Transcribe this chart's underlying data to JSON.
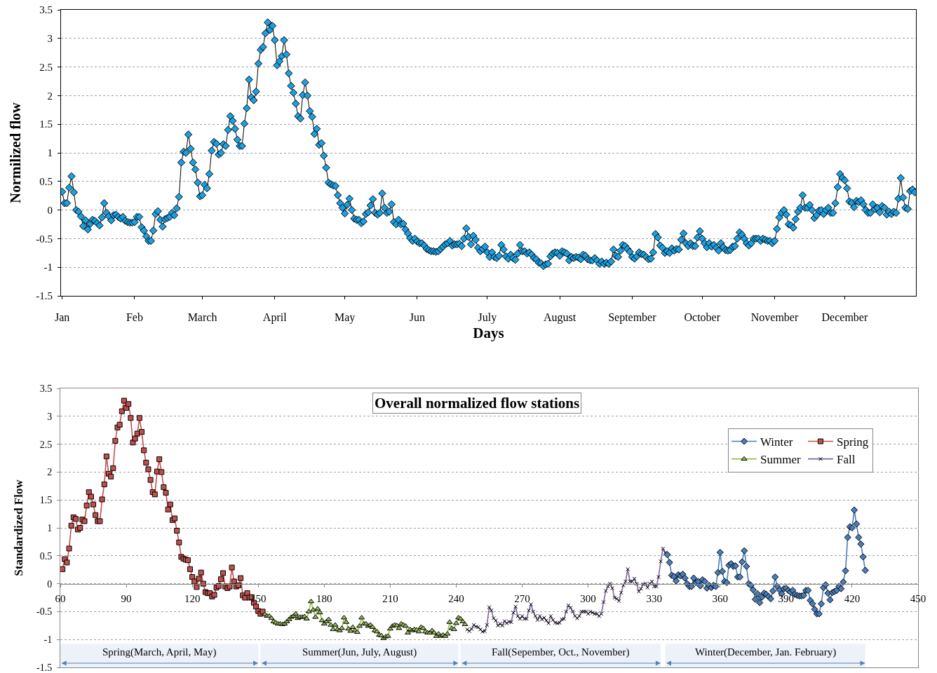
{
  "chart_data": [
    {
      "type": "line",
      "xlabel": "Days",
      "ylabel": "Normilized flow",
      "marker": "diamond",
      "grid": "y",
      "categories": [
        "Jan",
        null,
        null,
        null,
        null,
        null,
        null,
        null,
        null,
        null,
        null,
        null,
        null,
        null,
        null,
        null,
        null,
        null,
        null,
        null,
        null,
        null,
        null,
        null,
        null,
        null,
        null,
        null,
        null,
        null,
        null,
        "Feb",
        null,
        null,
        null,
        null,
        null,
        null,
        null,
        null,
        null,
        null,
        null,
        null,
        null,
        null,
        null,
        null,
        null,
        null,
        null,
        null,
        null,
        null,
        null,
        null,
        null,
        null,
        null,
        null,
        "March",
        null,
        null,
        null,
        null,
        null,
        null,
        null,
        null,
        null,
        null,
        null,
        null,
        null,
        null,
        null,
        null,
        null,
        null,
        null,
        null,
        null,
        null,
        null,
        null,
        null,
        null,
        null,
        null,
        null,
        null,
        "April",
        null,
        null,
        null,
        null,
        null,
        null,
        null,
        null,
        null,
        null,
        null,
        null,
        null,
        null,
        null,
        null,
        null,
        null,
        null,
        null,
        null,
        null,
        null,
        null,
        null,
        null,
        null,
        null,
        null,
        "May",
        null,
        null,
        null,
        null,
        null,
        null,
        null,
        null,
        null,
        null,
        null,
        null,
        null,
        null,
        null,
        null,
        null,
        null,
        null,
        null,
        null,
        null,
        null,
        null,
        null,
        null,
        null,
        null,
        null,
        null,
        "Jun",
        null,
        null,
        null,
        null,
        null,
        null,
        null,
        null,
        null,
        null,
        null,
        null,
        null,
        null,
        null,
        null,
        null,
        null,
        null,
        null,
        null,
        null,
        null,
        null,
        null,
        null,
        null,
        null,
        null,
        "July",
        null,
        null,
        null,
        null,
        null,
        null,
        null,
        null,
        null,
        null,
        null,
        null,
        null,
        null,
        null,
        null,
        null,
        null,
        null,
        null,
        null,
        null,
        null,
        null,
        null,
        null,
        null,
        null,
        null,
        null,
        "August",
        null,
        null,
        null,
        null,
        null,
        null,
        null,
        null,
        null,
        null,
        null,
        null,
        null,
        null,
        null,
        null,
        null,
        null,
        null,
        null,
        null,
        null,
        null,
        null,
        null,
        null,
        null,
        null,
        null,
        null,
        "September",
        null,
        null,
        null,
        null,
        null,
        null,
        null,
        null,
        null,
        null,
        null,
        null,
        null,
        null,
        null,
        null,
        null,
        null,
        null,
        null,
        null,
        null,
        null,
        null,
        null,
        null,
        null,
        null,
        null,
        "October",
        null,
        null,
        null,
        null,
        null,
        null,
        null,
        null,
        null,
        null,
        null,
        null,
        null,
        null,
        null,
        null,
        null,
        null,
        null,
        null,
        null,
        null,
        null,
        null,
        null,
        null,
        null,
        null,
        null,
        null,
        "November",
        null,
        null,
        null,
        null,
        null,
        null,
        null,
        null,
        null,
        null,
        null,
        null,
        null,
        null,
        null,
        null,
        null,
        null,
        null,
        null,
        null,
        null,
        null,
        null,
        null,
        null,
        null,
        null,
        null,
        "December",
        null,
        null,
        null,
        null,
        null,
        null,
        null,
        null,
        null,
        null,
        null,
        null,
        null,
        null,
        null,
        null,
        null,
        null,
        null,
        null,
        null,
        null,
        null,
        null,
        null,
        null,
        null,
        null,
        null,
        null
      ],
      "ylim": [
        -1.5,
        3.5
      ],
      "yticks": [
        -1.5,
        -1,
        -0.5,
        0,
        0.5,
        1,
        1.5,
        2,
        2.5,
        3,
        3.5
      ],
      "series": [
        {
          "color": "#1ba1e2",
          "values": [
            0.32,
            0.12,
            0.12,
            0.39,
            0.59,
            0.31,
            0.0,
            -0.03,
            -0.11,
            -0.28,
            -0.18,
            -0.34,
            -0.24,
            -0.17,
            -0.19,
            -0.23,
            -0.27,
            -0.13,
            0.12,
            -0.05,
            -0.11,
            -0.18,
            -0.09,
            -0.08,
            -0.12,
            -0.15,
            -0.12,
            -0.19,
            -0.21,
            -0.22,
            -0.22,
            -0.21,
            -0.12,
            -0.12,
            -0.3,
            -0.36,
            -0.46,
            -0.54,
            -0.54,
            -0.36,
            -0.07,
            -0.02,
            -0.17,
            -0.29,
            -0.16,
            -0.14,
            -0.12,
            -0.05,
            -0.09,
            0.03,
            0.23,
            0.83,
            1.02,
            1.0,
            1.32,
            1.07,
            0.83,
            0.71,
            0.48,
            0.24,
            0.26,
            0.44,
            0.38,
            0.63,
            1.04,
            1.19,
            1.16,
            0.97,
            1.0,
            1.15,
            1.12,
            1.4,
            1.64,
            1.56,
            1.42,
            1.23,
            1.12,
            1.12,
            1.51,
            1.78,
            2.28,
            1.97,
            1.92,
            2.07,
            2.56,
            2.8,
            2.85,
            3.09,
            3.28,
            3.15,
            3.22,
            2.97,
            2.53,
            2.6,
            2.69,
            2.97,
            2.72,
            2.39,
            2.17,
            2.05,
            1.86,
            1.64,
            1.6,
            2.01,
            2.23,
            2.0,
            1.73,
            1.63,
            1.33,
            1.42,
            1.14,
            1.17,
            0.95,
            0.74,
            0.48,
            0.45,
            0.43,
            0.42,
            0.26,
            0.12,
            0.04,
            -0.06,
            0.09,
            0.2,
            0.0,
            -0.15,
            -0.17,
            -0.17,
            -0.23,
            -0.2,
            -0.07,
            -0.04,
            0.08,
            0.19,
            -0.05,
            -0.08,
            -0.05,
            0.29,
            0.04,
            -0.05,
            -0.03,
            0.1,
            -0.21,
            -0.25,
            -0.17,
            -0.25,
            -0.24,
            -0.34,
            -0.41,
            -0.49,
            -0.54,
            -0.5,
            -0.55,
            -0.58,
            -0.58,
            -0.62,
            -0.68,
            -0.7,
            -0.72,
            -0.72,
            -0.73,
            -0.72,
            -0.68,
            -0.64,
            -0.6,
            -0.58,
            -0.54,
            -0.62,
            -0.6,
            -0.6,
            -0.59,
            -0.63,
            -0.5,
            -0.32,
            -0.47,
            -0.6,
            -0.45,
            -0.52,
            -0.66,
            -0.72,
            -0.68,
            -0.64,
            -0.74,
            -0.82,
            -0.74,
            -0.82,
            -0.84,
            -0.8,
            -0.61,
            -0.69,
            -0.81,
            -0.85,
            -0.78,
            -0.84,
            -0.87,
            -0.76,
            -0.61,
            -0.72,
            -0.72,
            -0.76,
            -0.74,
            -0.78,
            -0.84,
            -0.86,
            -0.92,
            -0.93,
            -0.98,
            -0.95,
            -0.94,
            -0.81,
            -0.76,
            -0.74,
            -0.75,
            -0.8,
            -0.72,
            -0.74,
            -0.76,
            -0.88,
            -0.82,
            -0.84,
            -0.82,
            -0.83,
            -0.86,
            -0.78,
            -0.8,
            -0.86,
            -0.88,
            -0.88,
            -0.84,
            -0.88,
            -0.94,
            -0.9,
            -0.94,
            -0.92,
            -0.94,
            -0.9,
            -0.69,
            -0.8,
            -0.82,
            -0.71,
            -0.61,
            -0.63,
            -0.68,
            -0.73,
            -0.82,
            -0.85,
            -0.81,
            -0.74,
            -0.77,
            -0.78,
            -0.82,
            -0.86,
            -0.85,
            -0.74,
            -0.42,
            -0.48,
            -0.62,
            -0.66,
            -0.75,
            -0.72,
            -0.75,
            -0.67,
            -0.71,
            -0.68,
            -0.69,
            -0.52,
            -0.41,
            -0.58,
            -0.63,
            -0.58,
            -0.63,
            -0.63,
            -0.48,
            -0.37,
            -0.5,
            -0.58,
            -0.65,
            -0.58,
            -0.64,
            -0.61,
            -0.66,
            -0.71,
            -0.58,
            -0.65,
            -0.7,
            -0.71,
            -0.7,
            -0.64,
            -0.63,
            -0.5,
            -0.39,
            -0.43,
            -0.5,
            -0.58,
            -0.62,
            -0.58,
            -0.5,
            -0.5,
            -0.5,
            -0.54,
            -0.5,
            -0.52,
            -0.54,
            -0.54,
            -0.58,
            -0.54,
            -0.33,
            -0.13,
            -0.05,
            0.0,
            -0.08,
            -0.25,
            -0.27,
            -0.31,
            -0.16,
            -0.03,
            0.04,
            0.26,
            0.04,
            0.04,
            0.09,
            0.0,
            -0.14,
            -0.09,
            -0.01,
            0.0,
            -0.07,
            0.0,
            0.04,
            -0.05,
            -0.05,
            0.12,
            0.4,
            0.63,
            0.56,
            0.52,
            0.38,
            0.15,
            0.13,
            0.05,
            0.16,
            0.14,
            0.17,
            0.1,
            0.0,
            -0.05,
            -0.05,
            0.1,
            0.02,
            0.04,
            -0.04,
            0.07,
            0.04,
            -0.08,
            -0.03,
            -0.07,
            -0.03,
            -0.05,
            0.2,
            0.56,
            0.22,
            0.04,
            0.02,
            0.33,
            0.36,
            0.31
          ]
        }
      ]
    },
    {
      "type": "line",
      "title": "Overall normalized flow stations",
      "ylabel": "Standardized Flow",
      "grid": "y",
      "legend": "top right",
      "xlim": [
        60,
        450
      ],
      "ylim": [
        -1.5,
        3.5
      ],
      "xticks": [
        60,
        90,
        120,
        150,
        180,
        210,
        240,
        270,
        300,
        330,
        360,
        390,
        420,
        450
      ],
      "yticks": [
        -1.5,
        -1,
        -0.5,
        0,
        0.5,
        1,
        1.5,
        2,
        2.5,
        3,
        3.5
      ],
      "series": [
        {
          "name": "Winter",
          "color": "#4a7ebb",
          "marker": "diamond",
          "x": [
            336,
            337,
            338,
            339,
            340,
            341,
            342,
            343,
            344,
            345,
            346,
            347,
            348,
            349,
            350,
            351,
            352,
            353,
            354,
            355,
            356,
            357,
            358,
            359,
            360,
            361,
            362,
            363,
            364,
            365,
            366,
            367,
            368,
            369,
            370,
            371,
            372,
            373,
            374,
            375,
            376,
            377,
            378,
            379,
            380,
            381,
            382,
            383,
            384,
            385,
            386,
            387,
            388,
            389,
            390,
            391,
            392,
            393,
            394,
            395,
            396,
            397,
            398,
            399,
            400,
            401,
            402,
            403,
            404,
            405,
            406,
            407,
            408,
            409,
            410,
            411,
            412,
            413,
            414,
            415,
            416,
            417,
            418,
            419,
            420,
            421,
            422,
            423,
            424,
            425,
            426
          ],
          "values": [
            0.52,
            0.38,
            0.15,
            0.13,
            0.05,
            0.16,
            0.14,
            0.17,
            0.1,
            0.0,
            -0.05,
            -0.05,
            0.1,
            0.02,
            0.04,
            -0.04,
            0.07,
            0.04,
            -0.08,
            -0.03,
            -0.07,
            -0.03,
            -0.05,
            0.2,
            0.56,
            0.22,
            0.04,
            0.02,
            0.33,
            0.36,
            0.31,
            0.32,
            0.12,
            0.12,
            0.39,
            0.59,
            0.31,
            0.0,
            -0.03,
            -0.11,
            -0.28,
            -0.18,
            -0.34,
            -0.24,
            -0.17,
            -0.19,
            -0.23,
            -0.27,
            -0.13,
            0.12,
            -0.05,
            -0.11,
            -0.18,
            -0.09,
            -0.08,
            -0.12,
            -0.15,
            -0.12,
            -0.19,
            -0.21,
            -0.22,
            -0.22,
            -0.21,
            -0.12,
            -0.12,
            -0.3,
            -0.36,
            -0.46,
            -0.54,
            -0.54,
            -0.36,
            -0.07,
            -0.02,
            -0.17,
            -0.29,
            -0.16,
            -0.14,
            -0.12,
            -0.05,
            -0.09,
            0.03,
            0.23,
            0.83,
            1.02,
            1.0,
            1.32,
            1.07,
            0.83,
            0.71,
            0.48,
            0.24
          ]
        },
        {
          "name": "Spring",
          "color": "#c0504d",
          "marker": "square",
          "x": [
            61,
            62,
            63,
            64,
            65,
            66,
            67,
            68,
            69,
            70,
            71,
            72,
            73,
            74,
            75,
            76,
            77,
            78,
            79,
            80,
            81,
            82,
            83,
            84,
            85,
            86,
            87,
            88,
            89,
            90,
            91,
            92,
            93,
            94,
            95,
            96,
            97,
            98,
            99,
            100,
            101,
            102,
            103,
            104,
            105,
            106,
            107,
            108,
            109,
            110,
            111,
            112,
            113,
            114,
            115,
            116,
            117,
            118,
            119,
            120,
            121,
            122,
            123,
            124,
            125,
            126,
            127,
            128,
            129,
            130,
            131,
            132,
            133,
            134,
            135,
            136,
            137,
            138,
            139,
            140,
            141,
            142,
            143,
            144,
            145,
            146,
            147,
            148,
            149,
            150,
            151,
            152
          ],
          "values": [
            0.26,
            0.44,
            0.38,
            0.63,
            1.04,
            1.19,
            1.16,
            0.97,
            1.0,
            1.15,
            1.12,
            1.4,
            1.64,
            1.56,
            1.42,
            1.23,
            1.12,
            1.12,
            1.51,
            1.78,
            2.28,
            1.97,
            1.92,
            2.07,
            2.56,
            2.8,
            2.85,
            3.09,
            3.28,
            3.15,
            3.22,
            2.97,
            2.53,
            2.6,
            2.69,
            2.97,
            2.72,
            2.39,
            2.17,
            2.05,
            1.86,
            1.64,
            1.6,
            2.01,
            2.23,
            2.0,
            1.73,
            1.63,
            1.33,
            1.42,
            1.14,
            1.17,
            0.95,
            0.74,
            0.48,
            0.45,
            0.43,
            0.42,
            0.26,
            0.12,
            0.04,
            -0.06,
            0.09,
            0.2,
            0.0,
            -0.15,
            -0.17,
            -0.17,
            -0.23,
            -0.2,
            -0.07,
            -0.04,
            0.08,
            0.19,
            -0.05,
            -0.08,
            -0.05,
            0.29,
            0.04,
            -0.05,
            -0.03,
            0.1,
            -0.21,
            -0.25,
            -0.17,
            -0.25,
            -0.24,
            -0.34,
            -0.41,
            -0.49,
            -0.54,
            -0.5
          ]
        },
        {
          "name": "Summer",
          "color": "#9bbb59",
          "marker": "triangle",
          "x": [
            153,
            154,
            155,
            156,
            157,
            158,
            159,
            160,
            161,
            162,
            163,
            164,
            165,
            166,
            167,
            168,
            169,
            170,
            171,
            172,
            173,
            174,
            175,
            176,
            177,
            178,
            179,
            180,
            181,
            182,
            183,
            184,
            185,
            186,
            187,
            188,
            189,
            190,
            191,
            192,
            193,
            194,
            195,
            196,
            197,
            198,
            199,
            200,
            201,
            202,
            203,
            204,
            205,
            206,
            207,
            208,
            209,
            210,
            211,
            212,
            213,
            214,
            215,
            216,
            217,
            218,
            219,
            220,
            221,
            222,
            223,
            224,
            225,
            226,
            227,
            228,
            229,
            230,
            231,
            232,
            233,
            234,
            235,
            236,
            237,
            238,
            239,
            240,
            241,
            242,
            243,
            244
          ],
          "values": [
            -0.55,
            -0.58,
            -0.58,
            -0.62,
            -0.68,
            -0.7,
            -0.72,
            -0.72,
            -0.73,
            -0.72,
            -0.68,
            -0.64,
            -0.6,
            -0.58,
            -0.54,
            -0.62,
            -0.6,
            -0.6,
            -0.59,
            -0.63,
            -0.5,
            -0.32,
            -0.47,
            -0.6,
            -0.45,
            -0.52,
            -0.66,
            -0.72,
            -0.68,
            -0.64,
            -0.74,
            -0.82,
            -0.74,
            -0.82,
            -0.84,
            -0.8,
            -0.61,
            -0.69,
            -0.81,
            -0.85,
            -0.78,
            -0.84,
            -0.87,
            -0.76,
            -0.61,
            -0.72,
            -0.72,
            -0.76,
            -0.74,
            -0.78,
            -0.84,
            -0.86,
            -0.92,
            -0.93,
            -0.98,
            -0.95,
            -0.94,
            -0.81,
            -0.76,
            -0.74,
            -0.75,
            -0.8,
            -0.72,
            -0.74,
            -0.76,
            -0.88,
            -0.82,
            -0.84,
            -0.82,
            -0.83,
            -0.86,
            -0.78,
            -0.8,
            -0.86,
            -0.88,
            -0.88,
            -0.84,
            -0.88,
            -0.94,
            -0.9,
            -0.94,
            -0.92,
            -0.94,
            -0.9,
            -0.69,
            -0.8,
            -0.82,
            -0.71,
            -0.61,
            -0.63,
            -0.68,
            -0.73
          ]
        },
        {
          "name": "Fall",
          "color": "#8064a2",
          "marker": "cross",
          "x": [
            245,
            246,
            247,
            248,
            249,
            250,
            251,
            252,
            253,
            254,
            255,
            256,
            257,
            258,
            259,
            260,
            261,
            262,
            263,
            264,
            265,
            266,
            267,
            268,
            269,
            270,
            271,
            272,
            273,
            274,
            275,
            276,
            277,
            278,
            279,
            280,
            281,
            282,
            283,
            284,
            285,
            286,
            287,
            288,
            289,
            290,
            291,
            292,
            293,
            294,
            295,
            296,
            297,
            298,
            299,
            300,
            301,
            302,
            303,
            304,
            305,
            306,
            307,
            308,
            309,
            310,
            311,
            312,
            313,
            314,
            315,
            316,
            317,
            318,
            319,
            320,
            321,
            322,
            323,
            324,
            325,
            326,
            327,
            328,
            329,
            330,
            331,
            332,
            333,
            334,
            335
          ],
          "values": [
            -0.82,
            -0.85,
            -0.81,
            -0.74,
            -0.77,
            -0.78,
            -0.82,
            -0.86,
            -0.85,
            -0.74,
            -0.42,
            -0.48,
            -0.62,
            -0.66,
            -0.75,
            -0.72,
            -0.75,
            -0.67,
            -0.71,
            -0.68,
            -0.69,
            -0.52,
            -0.41,
            -0.58,
            -0.63,
            -0.58,
            -0.63,
            -0.63,
            -0.48,
            -0.37,
            -0.5,
            -0.58,
            -0.65,
            -0.58,
            -0.64,
            -0.61,
            -0.66,
            -0.71,
            -0.58,
            -0.65,
            -0.7,
            -0.71,
            -0.7,
            -0.64,
            -0.63,
            -0.5,
            -0.39,
            -0.43,
            -0.5,
            -0.58,
            -0.62,
            -0.58,
            -0.5,
            -0.5,
            -0.5,
            -0.54,
            -0.5,
            -0.52,
            -0.54,
            -0.54,
            -0.58,
            -0.54,
            -0.33,
            -0.13,
            -0.05,
            0.0,
            -0.08,
            -0.25,
            -0.27,
            -0.31,
            -0.16,
            -0.03,
            0.04,
            0.26,
            0.04,
            0.04,
            0.09,
            0.0,
            -0.14,
            -0.09,
            -0.01,
            0.0,
            -0.07,
            0.0,
            0.04,
            -0.05,
            -0.05,
            0.12,
            0.4,
            0.63,
            0.56
          ]
        }
      ],
      "bands": [
        {
          "axis": "x",
          "from": 60,
          "to": 150,
          "label": "Spring(March, April, May)",
          "color": "#4f81bd"
        },
        {
          "axis": "x",
          "from": 151,
          "to": 241,
          "label": "Summer(Jun, July, August)",
          "color": "#4f81bd"
        },
        {
          "axis": "x",
          "from": 242,
          "to": 333,
          "label": "Fall(Sepember, Oct., November)",
          "color": "#4f81bd"
        },
        {
          "axis": "x",
          "from": 335,
          "to": 426,
          "label": "Winter(December, Jan. February)",
          "color": "#4f81bd"
        }
      ]
    }
  ]
}
